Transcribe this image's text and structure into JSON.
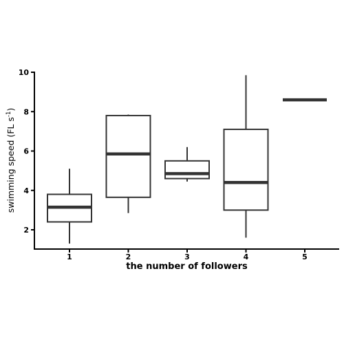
{
  "chart_data": {
    "type": "box",
    "xlabel": "the number of followers",
    "ylabel": {
      "main": "swimming speed (FL s",
      "sup": "-1",
      "close": ")"
    },
    "categories": [
      "1",
      "2",
      "3",
      "4",
      "5"
    ],
    "ylim": [
      1,
      10
    ],
    "yticks": [
      2,
      4,
      6,
      8,
      10
    ],
    "grid": false,
    "boxes": [
      {
        "category": "1",
        "min": 1.3,
        "q1": 2.4,
        "median": 3.15,
        "q3": 3.8,
        "max": 5.1
      },
      {
        "category": "2",
        "min": 2.85,
        "q1": 3.65,
        "median": 5.85,
        "q3": 7.8,
        "max": 7.85
      },
      {
        "category": "3",
        "min": 4.45,
        "q1": 4.6,
        "median": 4.85,
        "q3": 5.5,
        "max": 6.2
      },
      {
        "category": "4",
        "min": 1.6,
        "q1": 3.0,
        "median": 4.4,
        "q3": 7.1,
        "max": 9.85
      },
      {
        "category": "5",
        "min": 8.6,
        "q1": 8.6,
        "median": 8.6,
        "q3": 8.6,
        "max": 8.6
      }
    ]
  }
}
